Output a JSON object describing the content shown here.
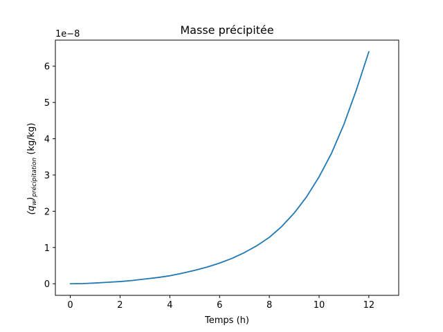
{
  "chart_data": {
    "type": "line",
    "title": "Masse précipitée",
    "xlabel": "Temps (h)",
    "ylabel_main": "(q",
    "ylabel_sub1": "w",
    "ylabel_mid": ")",
    "ylabel_sub2": "précipitation",
    "ylabel_unit": " (kg/kg)",
    "offset_text": "1e−8",
    "xlim": [
      -0.6,
      13.2
    ],
    "ylim": [
      -0.32,
      6.72
    ],
    "xticks": [
      0,
      2,
      4,
      6,
      8,
      10,
      12
    ],
    "yticks": [
      0,
      1,
      2,
      3,
      4,
      5,
      6
    ],
    "grid": false,
    "series": [
      {
        "color": "#1f77b4",
        "x": [
          0,
          0.5,
          1,
          1.5,
          2,
          2.5,
          3,
          3.5,
          4,
          4.5,
          5,
          5.5,
          6,
          6.5,
          7,
          7.5,
          8,
          8.5,
          9,
          9.5,
          10,
          10.5,
          11,
          11.5,
          12
        ],
        "y": [
          0,
          0.005,
          0.02,
          0.04,
          0.06,
          0.09,
          0.13,
          0.17,
          0.22,
          0.29,
          0.37,
          0.46,
          0.57,
          0.7,
          0.86,
          1.05,
          1.28,
          1.58,
          1.95,
          2.4,
          2.95,
          3.6,
          4.4,
          5.35,
          6.4
        ]
      }
    ]
  }
}
